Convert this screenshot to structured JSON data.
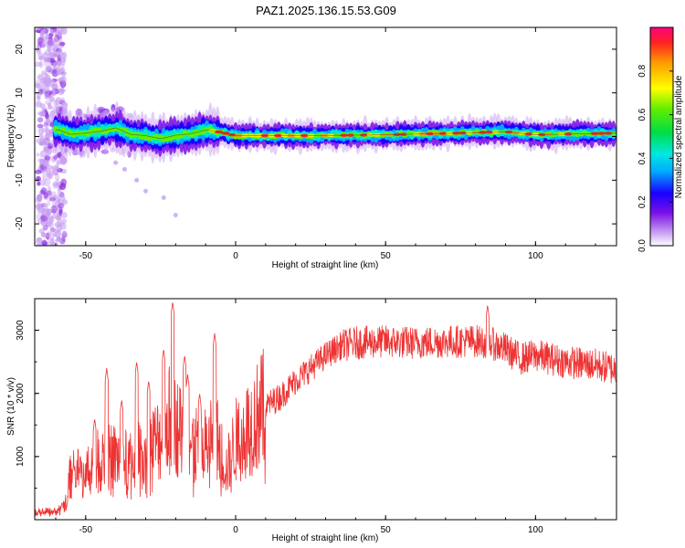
{
  "title": "PAZ1.2025.136.15.53.G09",
  "chart_data": [
    {
      "type": "heatmap",
      "xlabel": "Height of straight line (km)",
      "ylabel": "Frequency (Hz)",
      "xlim": [
        -67,
        127
      ],
      "ylim": [
        -25,
        25
      ],
      "xticks": [
        "-50",
        "0",
        "50",
        "100"
      ],
      "yticks": [
        "-20",
        "-10",
        "0",
        "10",
        "20"
      ],
      "colorbar": {
        "label": "Normalized spectral amplitude",
        "range": [
          0,
          1
        ],
        "ticks": [
          "0.0",
          "0.2",
          "0.4",
          "0.6",
          "0.8"
        ]
      },
      "ridge": [
        {
          "x": -59,
          "y": 1.5
        },
        {
          "x": -55,
          "y": 0.5
        },
        {
          "x": -50,
          "y": 0.8
        },
        {
          "x": -45,
          "y": 1.2
        },
        {
          "x": -40,
          "y": 2.0
        },
        {
          "x": -35,
          "y": 0.5
        },
        {
          "x": -30,
          "y": 0.2
        },
        {
          "x": -25,
          "y": -0.5
        },
        {
          "x": -20,
          "y": 0.3
        },
        {
          "x": -15,
          "y": 0.6
        },
        {
          "x": -10,
          "y": 1.5
        },
        {
          "x": -5,
          "y": 1.0
        },
        {
          "x": 0,
          "y": 0.2
        },
        {
          "x": 25,
          "y": 0.2
        },
        {
          "x": 50,
          "y": 0.4
        },
        {
          "x": 75,
          "y": 0.8
        },
        {
          "x": 90,
          "y": 1.1
        },
        {
          "x": 100,
          "y": 0.4
        },
        {
          "x": 127,
          "y": 0.8
        }
      ]
    },
    {
      "type": "line",
      "xlabel": "Height of straight line (km)",
      "ylabel": "SNR (10 * v/v)",
      "xlim": [
        -67,
        127
      ],
      "ylim": [
        0,
        3500
      ],
      "xticks": [
        "-50",
        "0",
        "50",
        "100"
      ],
      "yticks": [
        "1000",
        "2000",
        "3000"
      ],
      "series": [
        {
          "color": "#ee3333",
          "envelope": [
            {
              "x": -67,
              "y": 120
            },
            {
              "x": -60,
              "y": 130
            },
            {
              "x": -57,
              "y": 250
            },
            {
              "x": -55,
              "y": 700
            },
            {
              "x": -50,
              "y": 800
            },
            {
              "x": -45,
              "y": 950
            },
            {
              "x": -40,
              "y": 1000
            },
            {
              "x": -35,
              "y": 900
            },
            {
              "x": -30,
              "y": 1100
            },
            {
              "x": -25,
              "y": 1300
            },
            {
              "x": -22,
              "y": 1600
            },
            {
              "x": -20,
              "y": 1500
            },
            {
              "x": -15,
              "y": 1200
            },
            {
              "x": -10,
              "y": 1150
            },
            {
              "x": -7,
              "y": 1400
            },
            {
              "x": -3,
              "y": 800
            },
            {
              "x": 0,
              "y": 1250
            },
            {
              "x": 5,
              "y": 1500
            },
            {
              "x": 10,
              "y": 1800
            },
            {
              "x": 15,
              "y": 1950
            },
            {
              "x": 20,
              "y": 2200
            },
            {
              "x": 25,
              "y": 2400
            },
            {
              "x": 30,
              "y": 2600
            },
            {
              "x": 35,
              "y": 2750
            },
            {
              "x": 40,
              "y": 2800
            },
            {
              "x": 50,
              "y": 2820
            },
            {
              "x": 60,
              "y": 2800
            },
            {
              "x": 70,
              "y": 2820
            },
            {
              "x": 80,
              "y": 2830
            },
            {
              "x": 85,
              "y": 2800
            },
            {
              "x": 90,
              "y": 2700
            },
            {
              "x": 95,
              "y": 2550
            },
            {
              "x": 100,
              "y": 2600
            },
            {
              "x": 110,
              "y": 2500
            },
            {
              "x": 120,
              "y": 2450
            },
            {
              "x": 127,
              "y": 2380
            }
          ],
          "peaks": [
            {
              "x": -54,
              "y": 900
            },
            {
              "x": -47,
              "y": 1600
            },
            {
              "x": -43,
              "y": 2400
            },
            {
              "x": -38,
              "y": 1900
            },
            {
              "x": -33,
              "y": 2500
            },
            {
              "x": -29,
              "y": 2200
            },
            {
              "x": -24,
              "y": 2700
            },
            {
              "x": -21,
              "y": 3450
            },
            {
              "x": -17,
              "y": 2600
            },
            {
              "x": -16,
              "y": 2300
            },
            {
              "x": -12,
              "y": 2000
            },
            {
              "x": -7,
              "y": 2950
            },
            {
              "x": 84,
              "y": 3400
            }
          ]
        }
      ]
    }
  ]
}
